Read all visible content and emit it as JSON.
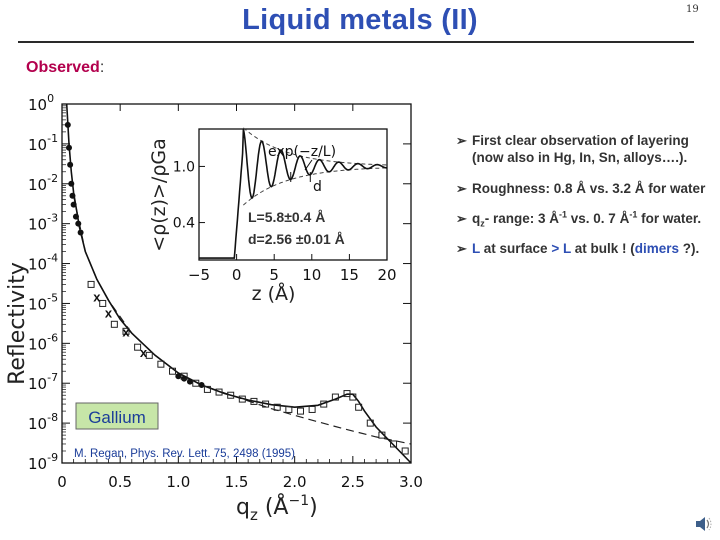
{
  "slide": {
    "title": "Liquid metals (II)",
    "page_number": "19",
    "observed_label": "Observed",
    "observed_colon": ":"
  },
  "bullets": {
    "b1_line1": "First clear observation of layering",
    "b1_line2": "(now also  in Hg, In, Sn, alloys….).",
    "b2": "Roughness: 0.8 Å vs. 3.2 Å for water",
    "b3_a": "q",
    "b3_sub": "z",
    "b3_b": "- range: 3 Å",
    "b3_sup1": "-1",
    "b3_c": " vs. 0. 7 Å",
    "b3_sup2": "-1",
    "b3_d": "  for water.",
    "b4_a": "L",
    "b4_b": " at surface ",
    "b4_c": ">",
    "b4_d": " L",
    "b4_e": " at bulk ! (",
    "b4_f": "dimers",
    "b4_g": " ?)."
  },
  "colors": {
    "title": "#2e4fb4",
    "observed": "#b3004d",
    "highlight": "#2e4fb4"
  },
  "chart_data": [
    {
      "type": "scatter",
      "xlabel": "q_z (Å^-1)",
      "ylabel": "Reflectivity",
      "yscale": "log",
      "xlim": [
        0,
        3.0
      ],
      "ylim": [
        1e-09,
        1
      ],
      "x_ticks": [
        "0",
        "0.5",
        "1.0",
        "1.5",
        "2.0",
        "2.5",
        "3.0"
      ],
      "y_ticks": [
        "10^0",
        "10^-1",
        "10^-2",
        "10^-3",
        "10^-4",
        "10^-5",
        "10^-6",
        "10^-7",
        "10^-8",
        "10^-9"
      ],
      "sample_label": "Gallium",
      "citation": "M. Regan, Phys. Rev. Lett. 75, 2498 (1995)",
      "series": [
        {
          "marker": "filled-circle",
          "x": [
            0.05,
            0.06,
            0.07,
            0.08,
            0.09,
            0.1,
            0.12,
            0.14,
            0.16,
            1.0,
            1.05,
            1.1,
            1.2
          ],
          "y": [
            0.3,
            0.08,
            0.03,
            0.01,
            0.005,
            0.003,
            0.0015,
            0.001,
            0.0006,
            1.5e-07,
            1.3e-07,
            1.1e-07,
            9e-08
          ]
        },
        {
          "marker": "open-square",
          "x": [
            0.25,
            0.35,
            0.45,
            0.55,
            0.65,
            0.75,
            0.85,
            0.95,
            1.05,
            1.15,
            1.25,
            1.35,
            1.45,
            1.55,
            1.65,
            1.75,
            1.85,
            1.95,
            2.05,
            2.15,
            2.25,
            2.35,
            2.45,
            2.5,
            2.55,
            2.65,
            2.75,
            2.85,
            2.95
          ],
          "y": [
            3e-05,
            1e-05,
            3e-06,
            2e-06,
            8e-07,
            5e-07,
            3e-07,
            2e-07,
            1.5e-07,
            1e-07,
            7e-08,
            6e-08,
            5e-08,
            4e-08,
            3.5e-08,
            3e-08,
            2.5e-08,
            2.2e-08,
            2e-08,
            2.2e-08,
            3e-08,
            4.5e-08,
            5.5e-08,
            4.5e-08,
            2.5e-08,
            1e-08,
            5e-09,
            3e-09,
            2e-09
          ]
        },
        {
          "marker": "cross",
          "x": [
            0.3,
            0.4,
            0.55,
            0.7
          ],
          "y": [
            1.5e-05,
            6e-06,
            2e-06,
            6e-07
          ]
        }
      ],
      "fit_curve": {
        "x": [
          0.04,
          0.06,
          0.08,
          0.1,
          0.15,
          0.2,
          0.3,
          0.4,
          0.5,
          0.6,
          0.8,
          1.0,
          1.2,
          1.4,
          1.6,
          1.8,
          2.0,
          2.2,
          2.35,
          2.45,
          2.5,
          2.55,
          2.6,
          2.7,
          2.8,
          2.9,
          3.0
        ],
        "y": [
          1.0,
          0.1,
          0.02,
          0.006,
          0.0008,
          0.0002,
          4e-05,
          1.2e-05,
          4e-06,
          1.8e-06,
          5e-07,
          1.8e-07,
          9e-08,
          5.5e-08,
          3.8e-08,
          2.9e-08,
          2.5e-08,
          2.8e-08,
          4e-08,
          5.3e-08,
          5.3e-08,
          3.5e-08,
          2e-08,
          8e-09,
          4e-09,
          2e-09,
          1e-09
        ]
      },
      "fresnel_curve": {
        "x": [
          0.1,
          0.2,
          0.3,
          0.4,
          0.6,
          0.8,
          1.0,
          1.2,
          1.5,
          1.8,
          2.1,
          2.4,
          2.7,
          3.0
        ],
        "y": [
          0.005,
          0.0002,
          4e-05,
          1.2e-05,
          1.8e-06,
          5e-07,
          1.8e-07,
          9e-08,
          4.5e-08,
          2.3e-08,
          1.3e-08,
          7.5e-09,
          4.5e-09,
          3e-09
        ]
      }
    },
    {
      "type": "line",
      "inset": true,
      "xlabel": "z (Å)",
      "ylabel": "<ρ(z)>/ρGa",
      "xlim": [
        -5,
        20
      ],
      "ylim": [
        0,
        1.4
      ],
      "x_ticks": [
        "−5",
        "0",
        "5",
        "10",
        "15",
        "20"
      ],
      "y_ticks": [
        "0.4",
        "1.0"
      ],
      "annotation_envelope": "exp(−z/L)",
      "annotation_d": "d",
      "param_L": "L=5.8±0.4 Å",
      "param_d": "d=2.56 ±0.01 Å",
      "L": 5.8,
      "d": 2.56
    }
  ]
}
